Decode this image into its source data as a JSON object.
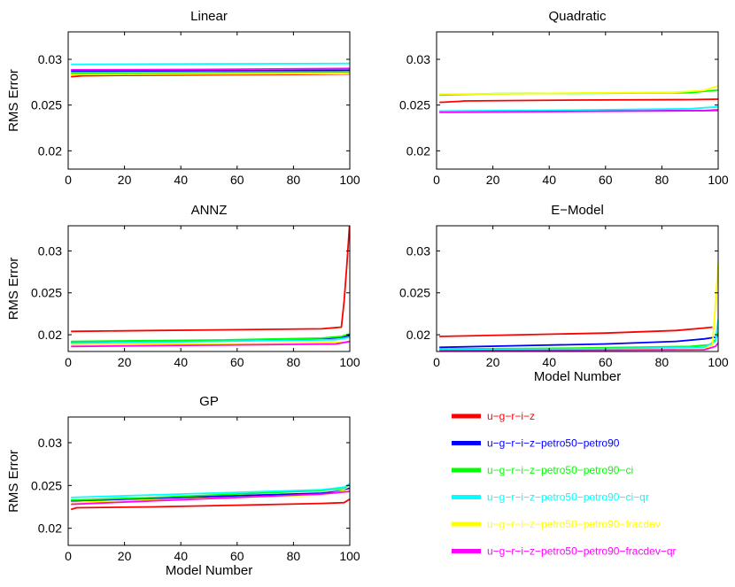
{
  "chart_data": [
    {
      "type": "line",
      "title": "Linear",
      "ylabel": "RMS Error",
      "xlabel": "",
      "xlim": [
        0,
        100
      ],
      "ylim": [
        0.018,
        0.033
      ],
      "xticks": [
        0,
        20,
        40,
        60,
        80,
        100
      ],
      "yticks": [
        0.02,
        0.025,
        0.03
      ],
      "xtick_labels": [
        "0",
        "20",
        "40",
        "60",
        "80",
        "100"
      ],
      "ytick_labels": [
        "0.02",
        "0.025",
        "0.03"
      ],
      "series": [
        {
          "name": "u−g−r−i−z",
          "color": "#ff0000",
          "points": [
            [
              1,
              0.0281
            ],
            [
              5,
              0.0282
            ],
            [
              20,
              0.02825
            ],
            [
              50,
              0.0283
            ],
            [
              80,
              0.02835
            ],
            [
              100,
              0.0284
            ]
          ]
        },
        {
          "name": "u−g−r−i−z−petro50−petro90",
          "color": "#0000ff",
          "points": [
            [
              1,
              0.0287
            ],
            [
              50,
              0.02875
            ],
            [
              100,
              0.0288
            ]
          ]
        },
        {
          "name": "u−g−r−i−z−petro50−petro90−ci",
          "color": "#00ff00",
          "points": [
            [
              1,
              0.0285
            ],
            [
              50,
              0.02855
            ],
            [
              100,
              0.0286
            ]
          ]
        },
        {
          "name": "u−g−r−i−z−petro50−petro90−ci−qr",
          "color": "#00ffff",
          "points": [
            [
              1,
              0.02945
            ],
            [
              50,
              0.0295
            ],
            [
              100,
              0.02955
            ]
          ]
        },
        {
          "name": "u−g−r−i−z−petro50−petro90−fracdev",
          "color": "#ffff00",
          "points": [
            [
              1,
              0.02835
            ],
            [
              50,
              0.0284
            ],
            [
              100,
              0.02845
            ]
          ]
        },
        {
          "name": "u−g−r−i−z−petro50−petro90−fracdev−qr",
          "color": "#ff00ff",
          "points": [
            [
              1,
              0.02885
            ],
            [
              50,
              0.0289
            ],
            [
              100,
              0.029
            ]
          ]
        }
      ]
    },
    {
      "type": "line",
      "title": "Quadratic",
      "ylabel": "",
      "xlabel": "",
      "xlim": [
        0,
        100
      ],
      "ylim": [
        0.018,
        0.033
      ],
      "xticks": [
        0,
        20,
        40,
        60,
        80,
        100
      ],
      "yticks": [
        0.02,
        0.025,
        0.03
      ],
      "xtick_labels": [
        "0",
        "20",
        "40",
        "60",
        "80",
        "100"
      ],
      "ytick_labels": [
        "0.02",
        "0.025",
        "0.03"
      ],
      "series": [
        {
          "name": "u−g−r−i−z",
          "color": "#ff0000",
          "points": [
            [
              1,
              0.0253
            ],
            [
              8,
              0.0254
            ],
            [
              10,
              0.02545
            ],
            [
              50,
              0.02555
            ],
            [
              90,
              0.0256
            ],
            [
              100,
              0.02565
            ]
          ]
        },
        {
          "name": "u−g−r−i−z−petro50−petro90",
          "color": "#0000ff",
          "points": [
            [
              1,
              0.0243
            ],
            [
              50,
              0.02435
            ],
            [
              95,
              0.0244
            ],
            [
              100,
              0.02445
            ]
          ]
        },
        {
          "name": "u−g−r−i−z−petro50−petro90−ci",
          "color": "#00ff00",
          "points": [
            [
              1,
              0.0261
            ],
            [
              20,
              0.02625
            ],
            [
              60,
              0.0263
            ],
            [
              90,
              0.02635
            ],
            [
              100,
              0.02665
            ]
          ]
        },
        {
          "name": "u−g−r−i−z−petro50−petro90−ci−qr",
          "color": "#00ffff",
          "points": [
            [
              1,
              0.02435
            ],
            [
              50,
              0.02445
            ],
            [
              90,
              0.0246
            ],
            [
              100,
              0.0248
            ]
          ]
        },
        {
          "name": "u−g−r−i−z−petro50−petro90−fracdev",
          "color": "#ffff00",
          "points": [
            [
              1,
              0.0262
            ],
            [
              50,
              0.0263
            ],
            [
              85,
              0.0264
            ],
            [
              95,
              0.0266
            ],
            [
              100,
              0.0271
            ]
          ]
        },
        {
          "name": "u−g−r−i−z−petro50−petro90−fracdev−qr",
          "color": "#ff00ff",
          "points": [
            [
              1,
              0.0242
            ],
            [
              50,
              0.0243
            ],
            [
              100,
              0.0244
            ]
          ]
        }
      ]
    },
    {
      "type": "line",
      "title": "ANNZ",
      "ylabel": "RMS Error",
      "xlabel": "",
      "xlim": [
        0,
        100
      ],
      "ylim": [
        0.018,
        0.033
      ],
      "xticks": [
        0,
        20,
        40,
        60,
        80,
        100
      ],
      "yticks": [
        0.02,
        0.025,
        0.03
      ],
      "xtick_labels": [
        "0",
        "20",
        "40",
        "60",
        "80",
        "100"
      ],
      "ytick_labels": [
        "0.02",
        "0.025",
        "0.03"
      ],
      "series": [
        {
          "name": "u−g−r−i−z",
          "color": "#ff0000",
          "points": [
            [
              1,
              0.0204
            ],
            [
              30,
              0.0205
            ],
            [
              60,
              0.0206
            ],
            [
              90,
              0.0207
            ],
            [
              97,
              0.0209
            ],
            [
              98,
              0.024
            ],
            [
              99,
              0.0285
            ],
            [
              100,
              0.0335
            ]
          ]
        },
        {
          "name": "u−g−r−i−z−petro50−petro90",
          "color": "#0000ff",
          "points": [
            [
              1,
              0.0191
            ],
            [
              50,
              0.0193
            ],
            [
              90,
              0.0195
            ],
            [
              97,
              0.0197
            ],
            [
              100,
              0.0199
            ]
          ]
        },
        {
          "name": "u−g−r−i−z−petro50−petro90−ci",
          "color": "#00ff00",
          "points": [
            [
              1,
              0.0192
            ],
            [
              50,
              0.01935
            ],
            [
              90,
              0.0196
            ],
            [
              97,
              0.0198
            ],
            [
              100,
              0.0201
            ]
          ]
        },
        {
          "name": "u−g−r−i−z−petro50−petro90−ci−qr",
          "color": "#00ffff",
          "points": [
            [
              1,
              0.019
            ],
            [
              50,
              0.0192
            ],
            [
              95,
              0.0194
            ],
            [
              100,
              0.0197
            ]
          ]
        },
        {
          "name": "u−g−r−i−z−petro50−petro90−fracdev",
          "color": "#ffff00",
          "points": [
            [
              1,
              0.0188
            ],
            [
              50,
              0.0189
            ],
            [
              100,
              0.0191
            ]
          ]
        },
        {
          "name": "u−g−r−i−z−petro50−petro90−fracdev−qr",
          "color": "#ff00ff",
          "points": [
            [
              1,
              0.0186
            ],
            [
              50,
              0.01875
            ],
            [
              95,
              0.0189
            ],
            [
              100,
              0.0192
            ]
          ]
        }
      ]
    },
    {
      "type": "line",
      "title": "E−Model",
      "ylabel": "",
      "xlabel": "Model Number",
      "xlim": [
        0,
        100
      ],
      "ylim": [
        0.018,
        0.033
      ],
      "xticks": [
        0,
        20,
        40,
        60,
        80,
        100
      ],
      "yticks": [
        0.02,
        0.025,
        0.03
      ],
      "xtick_labels": [
        "0",
        "20",
        "40",
        "60",
        "80",
        "100"
      ],
      "ytick_labels": [
        "0.02",
        "0.025",
        "0.03"
      ],
      "series": [
        {
          "name": "u−g−r−i−z",
          "color": "#ff0000",
          "points": [
            [
              1,
              0.0198
            ],
            [
              30,
              0.02
            ],
            [
              60,
              0.0202
            ],
            [
              85,
              0.0205
            ],
            [
              95,
              0.0208
            ],
            [
              98,
              0.0209
            ]
          ]
        },
        {
          "name": "u−g−r−i−z−petro50−petro90",
          "color": "#0000ff",
          "points": [
            [
              1,
              0.0185
            ],
            [
              30,
              0.0187
            ],
            [
              60,
              0.0189
            ],
            [
              85,
              0.0192
            ],
            [
              95,
              0.0195
            ],
            [
              99,
              0.0197
            ],
            [
              100,
              0.0199
            ]
          ]
        },
        {
          "name": "u−g−r−i−z−petro50−petro90−ci",
          "color": "#00ff00",
          "points": [
            [
              1,
              0.0183
            ],
            [
              50,
              0.0184
            ],
            [
              90,
              0.0186
            ],
            [
              97,
              0.0188
            ],
            [
              99,
              0.0194
            ],
            [
              100,
              0.0203
            ]
          ]
        },
        {
          "name": "u−g−r−i−z−petro50−petro90−ci−qr",
          "color": "#00ffff",
          "points": [
            [
              1,
              0.0182
            ],
            [
              50,
              0.0183
            ],
            [
              95,
              0.0185
            ],
            [
              99,
              0.0192
            ],
            [
              100,
              0.0218
            ]
          ]
        },
        {
          "name": "u−g−r−i−z−petro50−petro90−fracdev",
          "color": "#ffff00",
          "points": [
            [
              1,
              0.0181
            ],
            [
              50,
              0.01815
            ],
            [
              95,
              0.0183
            ],
            [
              98,
              0.0188
            ],
            [
              99,
              0.0235
            ],
            [
              100,
              0.0285
            ]
          ]
        },
        {
          "name": "u−g−r−i−z−petro50−petro90−fracdev−qr",
          "color": "#ff00ff",
          "points": [
            [
              1,
              0.0181
            ],
            [
              50,
              0.01815
            ],
            [
              95,
              0.0182
            ],
            [
              99,
              0.0186
            ],
            [
              100,
              0.019
            ]
          ]
        }
      ]
    },
    {
      "type": "line",
      "title": "GP",
      "ylabel": "RMS Error",
      "xlabel": "Model Number",
      "xlim": [
        0,
        100
      ],
      "ylim": [
        0.018,
        0.033
      ],
      "xticks": [
        0,
        20,
        40,
        60,
        80,
        100
      ],
      "yticks": [
        0.02,
        0.025,
        0.03
      ],
      "xtick_labels": [
        "0",
        "20",
        "40",
        "60",
        "80",
        "100"
      ],
      "ytick_labels": [
        "0.02",
        "0.025",
        "0.03"
      ],
      "series": [
        {
          "name": "u−g−r−i−z",
          "color": "#ff0000",
          "points": [
            [
              1,
              0.0222
            ],
            [
              3,
              0.0224
            ],
            [
              30,
              0.0225
            ],
            [
              60,
              0.0227
            ],
            [
              90,
              0.0229
            ],
            [
              98,
              0.023
            ],
            [
              100,
              0.0234
            ]
          ]
        },
        {
          "name": "u−g−r−i−z−petro50−petro90",
          "color": "#0000ff",
          "points": [
            [
              1,
              0.0232
            ],
            [
              30,
              0.0235
            ],
            [
              60,
              0.0238
            ],
            [
              90,
              0.0241
            ],
            [
              98,
              0.0244
            ],
            [
              100,
              0.0247
            ]
          ]
        },
        {
          "name": "u−g−r−i−z−petro50−petro90−ci",
          "color": "#00ff00",
          "points": [
            [
              1,
              0.0233
            ],
            [
              30,
              0.0236
            ],
            [
              60,
              0.024
            ],
            [
              90,
              0.0244
            ],
            [
              98,
              0.0247
            ],
            [
              100,
              0.0251
            ]
          ]
        },
        {
          "name": "u−g−r−i−z−petro50−petro90−ci−qr",
          "color": "#00ffff",
          "points": [
            [
              1,
              0.0236
            ],
            [
              30,
              0.0239
            ],
            [
              60,
              0.0242
            ],
            [
              90,
              0.0245
            ],
            [
              98,
              0.0248
            ],
            [
              100,
              0.0252
            ]
          ]
        },
        {
          "name": "u−g−r−i−z−petro50−petro90−fracdev",
          "color": "#ffff00",
          "points": [
            [
              1,
              0.023
            ],
            [
              30,
              0.0233
            ],
            [
              60,
              0.0236
            ],
            [
              90,
              0.0239
            ],
            [
              100,
              0.0245
            ]
          ]
        },
        {
          "name": "u−g−r−i−z−petro50−petro90−fracdev−qr",
          "color": "#ff00ff",
          "points": [
            [
              1,
              0.0228
            ],
            [
              30,
              0.0232
            ],
            [
              60,
              0.0236
            ],
            [
              90,
              0.024
            ],
            [
              100,
              0.0243
            ]
          ]
        }
      ]
    }
  ],
  "legend": {
    "placement": "bottom-right",
    "entries": [
      {
        "label": "u−g−r−i−z",
        "color": "#ff0000"
      },
      {
        "label": "u−g−r−i−z−petro50−petro90",
        "color": "#0000ff"
      },
      {
        "label": "u−g−r−i−z−petro50−petro90−ci",
        "color": "#00ff00"
      },
      {
        "label": "u−g−r−i−z−petro50−petro90−ci−qr",
        "color": "#00ffff"
      },
      {
        "label": "u−g−r−i−z−petro50−petro90−fracdev",
        "color": "#ffff00"
      },
      {
        "label": "u−g−r−i−z−petro50−petro90−fracdev−qr",
        "color": "#ff00ff"
      }
    ]
  }
}
